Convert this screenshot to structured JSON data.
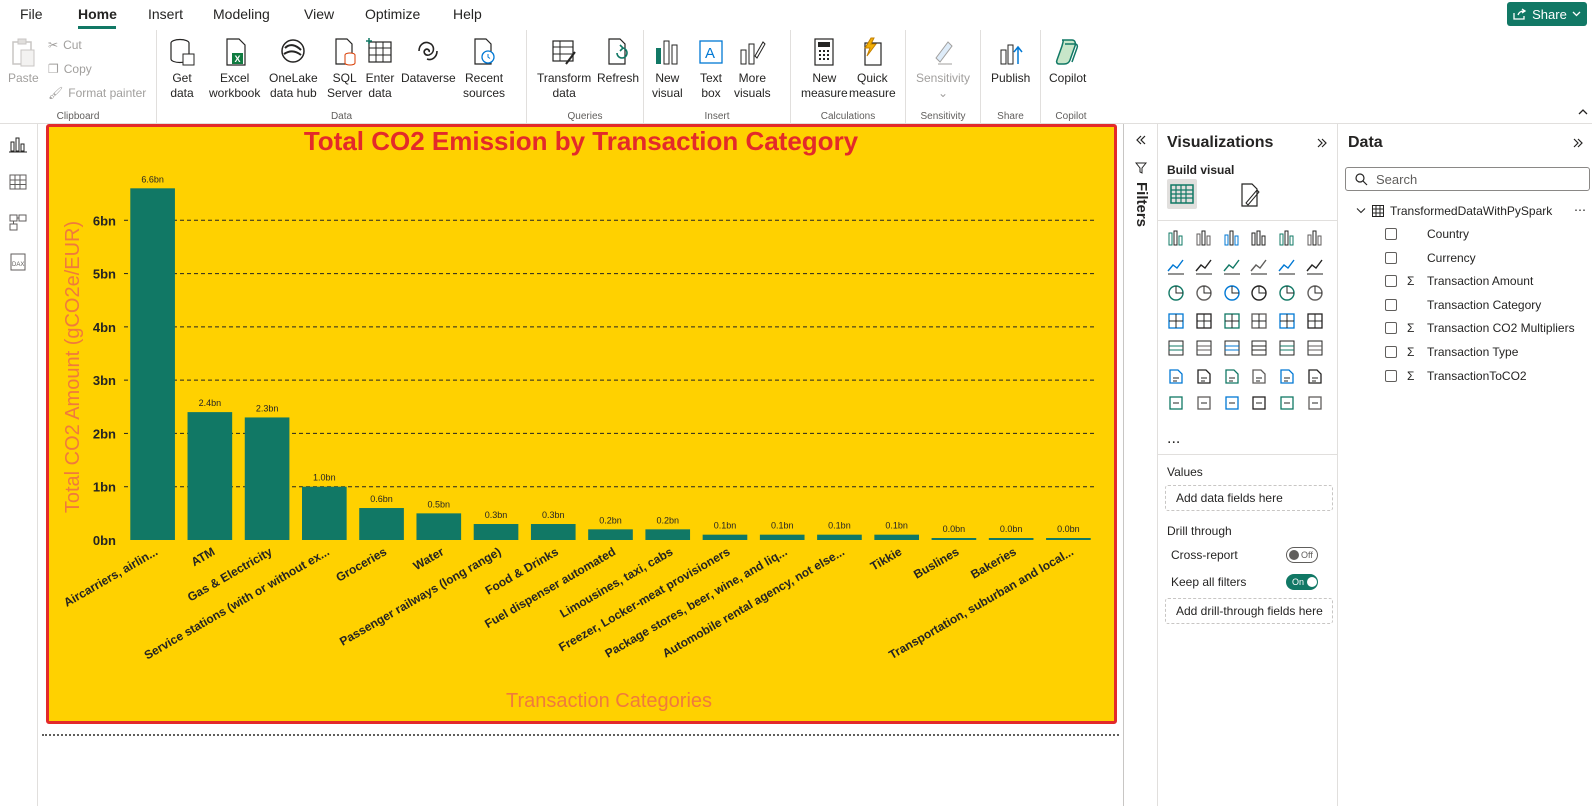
{
  "menu": {
    "items": [
      "File",
      "Home",
      "Insert",
      "Modeling",
      "View",
      "Optimize",
      "Help"
    ],
    "active": "Home",
    "share_label": "Share"
  },
  "ribbon": {
    "clipboard": {
      "paste": "Paste",
      "cut": "Cut",
      "copy": "Copy",
      "format_painter": "Format painter",
      "label": "Clipboard"
    },
    "data": {
      "get_data": [
        "Get",
        "data"
      ],
      "excel": [
        "Excel",
        "workbook"
      ],
      "onelake": [
        "OneLake",
        "data hub"
      ],
      "sql": [
        "SQL",
        "Server"
      ],
      "enter": [
        "Enter",
        "data"
      ],
      "dataverse": [
        "Dataverse",
        ""
      ],
      "recent": [
        "Recent",
        "sources"
      ],
      "label": "Data"
    },
    "queries": {
      "transform": [
        "Transform",
        "data"
      ],
      "refresh": [
        "Refresh",
        ""
      ],
      "label": "Queries"
    },
    "insert": {
      "new_visual": [
        "New",
        "visual"
      ],
      "text_box": [
        "Text",
        "box"
      ],
      "more_visuals": [
        "More",
        "visuals"
      ],
      "label": "Insert"
    },
    "calculations": {
      "new_measure": [
        "New",
        "measure"
      ],
      "quick_measure": [
        "Quick",
        "measure"
      ],
      "label": "Calculations"
    },
    "sensitivity": {
      "btn": [
        "Sensitivity",
        ""
      ],
      "label": "Sensitivity"
    },
    "share": {
      "publish": [
        "Publish",
        ""
      ],
      "label": "Share"
    },
    "copilot": {
      "btn": [
        "Copilot",
        ""
      ],
      "label": "Copilot"
    }
  },
  "chart_data": {
    "type": "bar",
    "title": "Total CO2 Emission by Transaction Category",
    "xlabel": "Transaction Categories",
    "ylabel": "Total CO2 Amount (gCO2e/EUR)",
    "categories": [
      "Aircarriers, airlin...",
      "ATM",
      "Gas & Electricity",
      "Service stations (with or without ex...",
      "Groceries",
      "Water",
      "Passenger railways (long range)",
      "Food & Drinks",
      "Fuel dispenser automated",
      "Limousines, taxi, cabs",
      "Freezer, Locker-meat provisioners",
      "Package stores, beer, wine, and liq...",
      "Automobile rental agency, not else...",
      "Tikkie",
      "Buslines",
      "Bakeries",
      "Transportation, suburban and local..."
    ],
    "values": [
      6.6,
      2.4,
      2.3,
      1.0,
      0.6,
      0.5,
      0.3,
      0.3,
      0.2,
      0.2,
      0.1,
      0.1,
      0.1,
      0.1,
      0.0,
      0.0,
      0.0
    ],
    "data_labels": [
      "6.6bn",
      "2.4bn",
      "2.3bn",
      "1.0bn",
      "0.6bn",
      "0.5bn",
      "0.3bn",
      "0.3bn",
      "0.2bn",
      "0.2bn",
      "0.1bn",
      "0.1bn",
      "0.1bn",
      "0.1bn",
      "0.0bn",
      "0.0bn",
      "0.0bn"
    ],
    "yticks": [
      "0bn",
      "1bn",
      "2bn",
      "3bn",
      "4bn",
      "5bn",
      "6bn"
    ],
    "ylim": [
      0,
      7
    ],
    "grid": true,
    "colors": {
      "bar": "#117865",
      "background": "#ffd100",
      "title": "#e32a2a",
      "axis_title": "#f07a3c",
      "border": "#e32a2a"
    }
  },
  "filters": {
    "label": "Filters"
  },
  "visualizations": {
    "title": "Visualizations",
    "build_visual": "Build visual",
    "values_label": "Values",
    "values_placeholder": "Add data fields here",
    "drill_through": "Drill through",
    "cross_report": "Cross-report",
    "cross_report_state": "Off",
    "keep_all_filters": "Keep all filters",
    "keep_all_filters_state": "On",
    "drill_placeholder": "Add drill-through fields here",
    "more": "..."
  },
  "data_pane": {
    "title": "Data",
    "search_placeholder": "Search",
    "table_name": "TransformedDataWithPySpark",
    "fields": [
      {
        "name": "Country",
        "sigma": false
      },
      {
        "name": "Currency",
        "sigma": false
      },
      {
        "name": "Transaction Amount",
        "sigma": true
      },
      {
        "name": "Transaction Category",
        "sigma": false
      },
      {
        "name": "Transaction CO2 Multipliers",
        "sigma": true
      },
      {
        "name": "Transaction Type",
        "sigma": true
      },
      {
        "name": "TransactionToCO2",
        "sigma": true
      }
    ]
  }
}
